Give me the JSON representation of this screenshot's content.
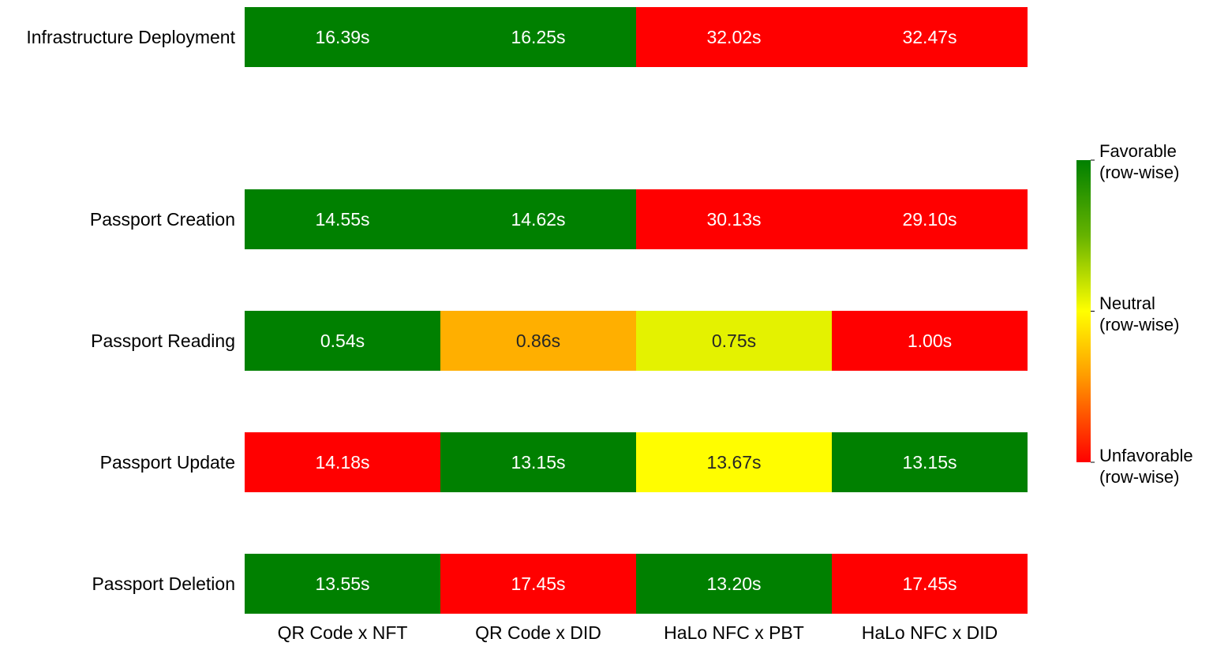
{
  "chart_data": {
    "type": "heatmap",
    "rows": [
      "Infrastructure Deployment",
      "Passport Creation",
      "Passport Reading",
      "Passport Update",
      "Passport Deletion"
    ],
    "columns": [
      "QR Code x NFT",
      "QR Code x DID",
      "HaLo NFC x PBT",
      "HaLo NFC x DID"
    ],
    "values": [
      [
        16.39,
        16.25,
        32.02,
        32.47
      ],
      [
        14.55,
        14.62,
        30.13,
        29.1
      ],
      [
        0.54,
        0.86,
        0.75,
        1.0
      ],
      [
        14.18,
        13.15,
        13.67,
        13.15
      ],
      [
        13.55,
        17.45,
        13.2,
        17.45
      ]
    ],
    "cell_labels": [
      [
        "16.39s",
        "16.25s",
        "32.02s",
        "32.47s"
      ],
      [
        "14.55s",
        "14.62s",
        "30.13s",
        "29.10s"
      ],
      [
        "0.54s",
        "0.86s",
        "0.75s",
        "1.00s"
      ],
      [
        "14.18s",
        "13.15s",
        "13.67s",
        "13.15s"
      ],
      [
        "13.55s",
        "17.45s",
        "13.20s",
        "17.45s"
      ]
    ],
    "color_scale": {
      "scope": "row-wise",
      "low_value_color": "#008000",
      "mid_color": "#ffff00",
      "high_value_color": "#ff0000",
      "intermediate_stops": [
        "#ffa500"
      ]
    },
    "legend": {
      "placement": "right",
      "entries": [
        {
          "line1": "Favorable",
          "line2": "(row-wise)"
        },
        {
          "line1": "Neutral",
          "line2": "(row-wise)"
        },
        {
          "line1": "Unfavorable",
          "line2": "(row-wise)"
        }
      ]
    },
    "title": "",
    "xlabel": "",
    "ylabel": ""
  }
}
